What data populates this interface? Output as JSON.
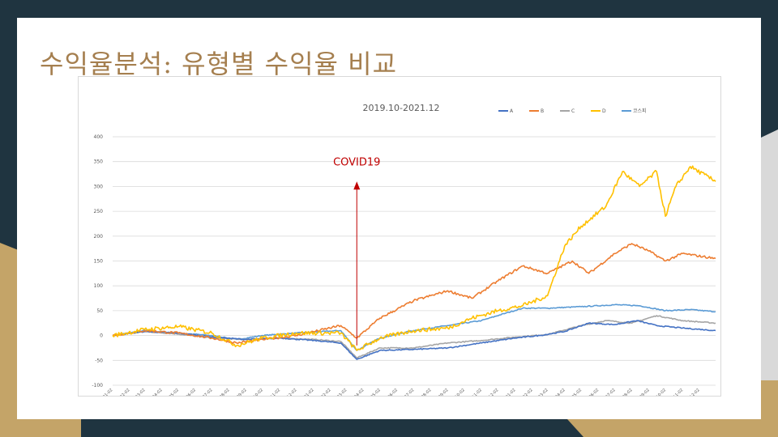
{
  "slide": {
    "title": "수익율분석: 유형별 수익율 비교"
  },
  "colors": {
    "background": "#1f3440",
    "gold": "#c4a468",
    "title": "#a57f4f",
    "annotation": "#c00000"
  },
  "chart_data": {
    "type": "line",
    "title": "2019.10-2021.12",
    "xlabel": "",
    "ylabel": "",
    "ylim": [
      -100,
      400
    ],
    "yticks": [
      -100,
      -50,
      0,
      50,
      100,
      150,
      200,
      250,
      300,
      350,
      400
    ],
    "grid": true,
    "legend_position": "top-right",
    "x_tick_labels": [
      "2019-01-02",
      "2019-02-02",
      "2019-03-02",
      "2019-04-02",
      "2019-05-02",
      "2019-06-02",
      "2019-07-02",
      "2019-08-02",
      "2019-09-02",
      "2019-10-02",
      "2019-11-02",
      "2019-12-02",
      "2020-01-02",
      "2020-02-02",
      "2020-03-02",
      "2020-04-02",
      "2020-05-02",
      "2020-06-02",
      "2020-07-02",
      "2020-08-02",
      "2020-09-02",
      "2020-10-02",
      "2020-11-02",
      "2020-12-02",
      "2021-01-02",
      "2021-02-02",
      "2021-03-02",
      "2021-04-02",
      "2021-05-02",
      "2021-06-02",
      "2021-07-02",
      "2021-08-02",
      "2021-09-02",
      "2021-10-02",
      "2021-11-02",
      "2021-12-02"
    ],
    "annotation": {
      "label": "COVID19",
      "at": "2020-03-20",
      "value": 310
    },
    "series": [
      {
        "name": "A",
        "color": "#4472c4",
        "points": [
          [
            "2019-01-02",
            0
          ],
          [
            "2019-03-01",
            8
          ],
          [
            "2019-05-01",
            5
          ],
          [
            "2019-07-01",
            -3
          ],
          [
            "2019-09-01",
            -8
          ],
          [
            "2019-11-01",
            -5
          ],
          [
            "2020-01-02",
            -10
          ],
          [
            "2020-02-20",
            -15
          ],
          [
            "2020-03-20",
            -48
          ],
          [
            "2020-05-01",
            -30
          ],
          [
            "2020-07-01",
            -28
          ],
          [
            "2020-09-01",
            -25
          ],
          [
            "2020-11-01",
            -15
          ],
          [
            "2021-01-02",
            -5
          ],
          [
            "2021-02-15",
            0
          ],
          [
            "2021-04-01",
            8
          ],
          [
            "2021-05-15",
            25
          ],
          [
            "2021-07-01",
            22
          ],
          [
            "2021-08-10",
            30
          ],
          [
            "2021-09-15",
            20
          ],
          [
            "2021-11-01",
            15
          ],
          [
            "2021-12-31",
            10
          ]
        ]
      },
      {
        "name": "B",
        "color": "#ed7d31",
        "points": [
          [
            "2019-01-02",
            0
          ],
          [
            "2019-03-01",
            10
          ],
          [
            "2019-05-01",
            5
          ],
          [
            "2019-07-01",
            -5
          ],
          [
            "2019-08-15",
            -15
          ],
          [
            "2019-10-01",
            -8
          ],
          [
            "2019-12-01",
            0
          ],
          [
            "2020-02-20",
            20
          ],
          [
            "2020-03-20",
            -5
          ],
          [
            "2020-05-01",
            35
          ],
          [
            "2020-07-01",
            70
          ],
          [
            "2020-09-01",
            90
          ],
          [
            "2020-10-15",
            75
          ],
          [
            "2020-12-01",
            110
          ],
          [
            "2021-01-15",
            140
          ],
          [
            "2021-03-01",
            125
          ],
          [
            "2021-04-15",
            150
          ],
          [
            "2021-05-15",
            125
          ],
          [
            "2021-07-01",
            165
          ],
          [
            "2021-08-01",
            185
          ],
          [
            "2021-09-01",
            170
          ],
          [
            "2021-10-01",
            150
          ],
          [
            "2021-11-01",
            165
          ],
          [
            "2021-12-31",
            155
          ]
        ]
      },
      {
        "name": "C",
        "color": "#a5a5a5",
        "points": [
          [
            "2019-01-02",
            0
          ],
          [
            "2019-03-01",
            8
          ],
          [
            "2019-05-01",
            3
          ],
          [
            "2019-07-01",
            -5
          ],
          [
            "2019-09-01",
            -8
          ],
          [
            "2019-11-01",
            -5
          ],
          [
            "2020-01-02",
            -8
          ],
          [
            "2020-02-20",
            -12
          ],
          [
            "2020-03-20",
            -45
          ],
          [
            "2020-05-01",
            -25
          ],
          [
            "2020-07-01",
            -25
          ],
          [
            "2020-09-01",
            -15
          ],
          [
            "2020-11-01",
            -10
          ],
          [
            "2021-01-02",
            -3
          ],
          [
            "2021-03-01",
            2
          ],
          [
            "2021-05-01",
            20
          ],
          [
            "2021-06-15",
            30
          ],
          [
            "2021-08-01",
            25
          ],
          [
            "2021-09-15",
            40
          ],
          [
            "2021-11-01",
            30
          ],
          [
            "2021-12-31",
            25
          ]
        ]
      },
      {
        "name": "D",
        "color": "#ffc000",
        "points": [
          [
            "2019-01-02",
            0
          ],
          [
            "2019-03-01",
            12
          ],
          [
            "2019-05-01",
            18
          ],
          [
            "2019-07-01",
            5
          ],
          [
            "2019-08-15",
            -20
          ],
          [
            "2019-10-01",
            -5
          ],
          [
            "2019-12-01",
            5
          ],
          [
            "2020-02-20",
            5
          ],
          [
            "2020-03-20",
            -30
          ],
          [
            "2020-05-01",
            -5
          ],
          [
            "2020-07-01",
            10
          ],
          [
            "2020-09-01",
            15
          ],
          [
            "2020-10-15",
            35
          ],
          [
            "2020-12-01",
            50
          ],
          [
            "2021-01-15",
            60
          ],
          [
            "2021-03-01",
            80
          ],
          [
            "2021-04-01",
            180
          ],
          [
            "2021-05-01",
            220
          ],
          [
            "2021-06-15",
            260
          ],
          [
            "2021-07-15",
            330
          ],
          [
            "2021-08-15",
            300
          ],
          [
            "2021-09-15",
            330
          ],
          [
            "2021-10-01",
            240
          ],
          [
            "2021-10-20",
            300
          ],
          [
            "2021-11-15",
            340
          ],
          [
            "2021-12-31",
            310
          ]
        ]
      },
      {
        "name": "코스피",
        "color": "#5b9bd5",
        "points": [
          [
            "2019-01-02",
            0
          ],
          [
            "2019-03-01",
            10
          ],
          [
            "2019-05-01",
            5
          ],
          [
            "2019-07-01",
            0
          ],
          [
            "2019-08-15",
            -8
          ],
          [
            "2019-10-01",
            0
          ],
          [
            "2019-12-01",
            5
          ],
          [
            "2020-02-20",
            10
          ],
          [
            "2020-03-20",
            -30
          ],
          [
            "2020-05-01",
            -5
          ],
          [
            "2020-07-01",
            10
          ],
          [
            "2020-09-01",
            20
          ],
          [
            "2020-11-01",
            30
          ],
          [
            "2020-12-15",
            45
          ],
          [
            "2021-01-15",
            55
          ],
          [
            "2021-03-01",
            55
          ],
          [
            "2021-05-01",
            58
          ],
          [
            "2021-07-01",
            62
          ],
          [
            "2021-08-15",
            60
          ],
          [
            "2021-10-01",
            50
          ],
          [
            "2021-11-15",
            52
          ],
          [
            "2021-12-31",
            48
          ]
        ]
      }
    ]
  }
}
